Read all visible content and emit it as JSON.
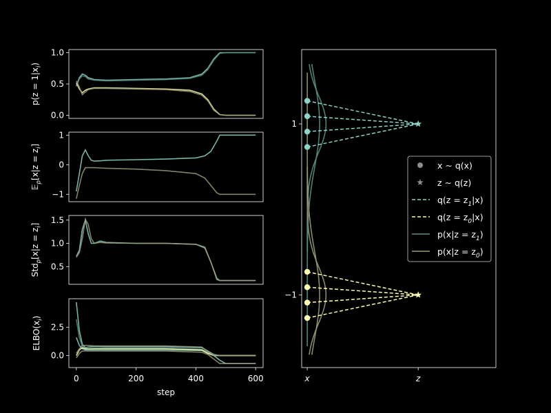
{
  "chart_data": [
    {
      "type": "line",
      "ylabel_math": [
        "p(z = 1|x",
        "i",
        ")"
      ],
      "xlim": [
        -25,
        625
      ],
      "ylim": [
        -0.05,
        1.05
      ],
      "yticks": [
        0.0,
        0.5,
        1.0
      ],
      "ytick_labels": [
        "0.0",
        "0.5",
        "1.0"
      ],
      "series": [
        {
          "group": "z1",
          "x": [
            0,
            10,
            20,
            30,
            40,
            60,
            100,
            200,
            300,
            380,
            420,
            440,
            460,
            480,
            500,
            600
          ],
          "values": [
            0.47,
            0.6,
            0.66,
            0.64,
            0.6,
            0.57,
            0.56,
            0.57,
            0.58,
            0.6,
            0.66,
            0.75,
            0.9,
            1.0,
            1.0,
            1.0
          ]
        },
        {
          "group": "z1",
          "x": [
            0,
            10,
            20,
            30,
            40,
            60,
            100,
            200,
            300,
            380,
            420,
            440,
            460,
            480,
            500,
            600
          ],
          "values": [
            0.46,
            0.58,
            0.63,
            0.62,
            0.58,
            0.56,
            0.55,
            0.56,
            0.57,
            0.59,
            0.64,
            0.73,
            0.88,
            0.99,
            1.0,
            1.0
          ]
        },
        {
          "group": "z0",
          "x": [
            0,
            10,
            20,
            30,
            40,
            60,
            100,
            200,
            300,
            380,
            420,
            440,
            460,
            480,
            500,
            600
          ],
          "values": [
            0.52,
            0.42,
            0.36,
            0.4,
            0.42,
            0.44,
            0.44,
            0.43,
            0.42,
            0.4,
            0.34,
            0.25,
            0.1,
            0.01,
            0.0,
            0.0
          ]
        },
        {
          "group": "z0",
          "x": [
            0,
            10,
            20,
            30,
            40,
            60,
            100,
            200,
            300,
            380,
            420,
            440,
            460,
            480,
            500,
            600
          ],
          "values": [
            0.55,
            0.45,
            0.33,
            0.37,
            0.41,
            0.43,
            0.43,
            0.42,
            0.41,
            0.38,
            0.32,
            0.23,
            0.08,
            0.01,
            0.0,
            0.0
          ]
        }
      ]
    },
    {
      "type": "line",
      "ylabel_math": [
        "𝔼",
        "p",
        "[x|z = z",
        "i",
        "]"
      ],
      "xlim": [
        -25,
        625
      ],
      "ylim": [
        -1.25,
        1.1
      ],
      "yticks": [
        -1,
        0,
        1
      ],
      "ytick_labels": [
        "−1",
        "0",
        "1"
      ],
      "series": [
        {
          "group": "z1",
          "x": [
            0,
            10,
            20,
            30,
            40,
            50,
            60,
            80,
            100,
            200,
            300,
            400,
            430,
            450,
            470,
            480,
            500,
            600
          ],
          "values": [
            -0.9,
            -0.3,
            0.3,
            0.5,
            0.3,
            0.15,
            0.12,
            0.13,
            0.15,
            0.17,
            0.19,
            0.23,
            0.3,
            0.45,
            0.8,
            1.0,
            1.0,
            1.0
          ]
        },
        {
          "group": "z0",
          "x": [
            0,
            10,
            20,
            30,
            40,
            50,
            60,
            80,
            100,
            200,
            300,
            400,
            430,
            450,
            470,
            480,
            500,
            600
          ],
          "values": [
            -1.15,
            -0.7,
            -0.3,
            -0.1,
            -0.1,
            -0.1,
            -0.1,
            -0.11,
            -0.12,
            -0.15,
            -0.2,
            -0.3,
            -0.45,
            -0.7,
            -0.95,
            -1.0,
            -1.0,
            -1.0
          ]
        }
      ]
    },
    {
      "type": "line",
      "ylabel_math": [
        "Std",
        "p",
        "[x|z = z",
        "i",
        "]"
      ],
      "xlim": [
        -25,
        625
      ],
      "ylim": [
        0.12,
        1.6
      ],
      "yticks": [
        0.5,
        1.0,
        1.5
      ],
      "ytick_labels": [
        "0.5",
        "1.0",
        "1.5"
      ],
      "series": [
        {
          "group": "z1",
          "x": [
            0,
            10,
            20,
            30,
            40,
            50,
            60,
            80,
            100,
            200,
            300,
            400,
            430,
            450,
            470,
            480,
            500,
            600
          ],
          "values": [
            0.72,
            0.85,
            1.3,
            1.5,
            1.2,
            1.0,
            1.0,
            1.05,
            1.02,
            1.0,
            1.0,
            0.98,
            0.9,
            0.6,
            0.25,
            0.2,
            0.2,
            0.2
          ]
        },
        {
          "group": "z0",
          "x": [
            0,
            10,
            20,
            30,
            40,
            50,
            60,
            80,
            100,
            200,
            300,
            400,
            430,
            450,
            470,
            480,
            500,
            600
          ],
          "values": [
            0.7,
            0.8,
            1.1,
            1.52,
            1.4,
            1.1,
            1.0,
            1.02,
            1.01,
            1.0,
            1.0,
            0.98,
            0.92,
            0.6,
            0.22,
            0.2,
            0.2,
            0.2
          ]
        }
      ]
    },
    {
      "type": "line",
      "ylabel_math": [
        "ELBO(x",
        "i",
        ")"
      ],
      "xlabel": "step",
      "xlim": [
        -25,
        625
      ],
      "ylim": [
        -1.05,
        5.0
      ],
      "yticks": [
        0.0,
        2.5
      ],
      "ytick_labels": [
        "0.0",
        "2.5"
      ],
      "xticks": [
        0,
        200,
        400,
        600
      ],
      "xtick_labels": [
        "0",
        "200",
        "400",
        "600"
      ],
      "series": [
        {
          "group": "z1",
          "x": [
            0,
            10,
            20,
            30,
            40,
            60,
            100,
            200,
            300,
            420,
            440,
            460,
            480,
            500,
            600
          ],
          "values": [
            4.7,
            2.2,
            1.0,
            0.7,
            0.75,
            0.8,
            0.78,
            0.78,
            0.78,
            0.7,
            0.4,
            0.1,
            0.0,
            0.0,
            0.0
          ]
        },
        {
          "group": "z1",
          "x": [
            0,
            10,
            20,
            30,
            40,
            60,
            100,
            200,
            300,
            420,
            440,
            460,
            480,
            500,
            600
          ],
          "values": [
            3.2,
            1.6,
            0.8,
            0.6,
            0.6,
            0.65,
            0.65,
            0.65,
            0.65,
            0.55,
            0.3,
            0.05,
            0.0,
            0.0,
            0.0
          ]
        },
        {
          "group": "z1",
          "x": [
            0,
            10,
            20,
            30,
            40,
            60,
            100,
            200,
            300,
            420,
            440,
            460,
            480,
            500,
            600
          ],
          "values": [
            1.6,
            0.9,
            0.6,
            0.5,
            0.5,
            0.5,
            0.5,
            0.5,
            0.5,
            0.45,
            0.2,
            0.0,
            -0.4,
            -0.7,
            -0.7
          ]
        },
        {
          "group": "z0",
          "x": [
            0,
            10,
            20,
            30,
            40,
            60,
            100,
            200,
            300,
            420,
            440,
            460,
            480,
            500,
            600
          ],
          "values": [
            -0.2,
            0.2,
            0.4,
            0.4,
            0.4,
            0.4,
            0.4,
            0.4,
            0.4,
            0.3,
            0.1,
            -0.3,
            -0.7,
            -0.7,
            -0.7
          ]
        },
        {
          "group": "z0",
          "x": [
            0,
            10,
            20,
            30,
            40,
            60,
            100,
            200,
            300,
            420,
            440,
            460,
            480,
            500,
            600
          ],
          "values": [
            0.0,
            0.5,
            0.7,
            0.6,
            0.6,
            0.6,
            0.6,
            0.6,
            0.6,
            0.5,
            0.2,
            0.0,
            0.0,
            0.0,
            0.0
          ]
        },
        {
          "group": "z0",
          "x": [
            0,
            10,
            20,
            30,
            40,
            60,
            100,
            200,
            300,
            420,
            440,
            460,
            480,
            500,
            600
          ],
          "values": [
            0.2,
            0.6,
            0.9,
            0.9,
            0.9,
            0.85,
            0.85,
            0.85,
            0.85,
            0.75,
            0.35,
            0.0,
            0.0,
            0.0,
            0.0
          ]
        }
      ]
    },
    {
      "type": "line",
      "panel": "right",
      "xlim": [
        -0.05,
        1.7
      ],
      "ylim": [
        -1.85,
        1.87
      ],
      "yticks": [
        1,
        -1
      ],
      "ytick_labels": [
        "1",
        "−1"
      ],
      "xticks": [
        0,
        1
      ],
      "xtick_labels": [
        "x",
        "z"
      ],
      "z_points": [
        {
          "z": 1,
          "x_samples": [
            1.27,
            1.09,
            0.91,
            0.73
          ]
        },
        {
          "z": -1,
          "x_samples": [
            -0.73,
            -0.91,
            -1.09,
            -1.27
          ]
        }
      ],
      "densities": [
        {
          "group": "z1",
          "mean": 1.0,
          "std": 0.33,
          "ymin": -0.5,
          "ymax": 1.7
        },
        {
          "group": "z0",
          "mean": -1.0,
          "std": 0.33,
          "ymin": -1.7,
          "ymax": 0.5
        },
        {
          "group": "z1",
          "mean": 1.0,
          "std": 0.5,
          "ymin": -1.6,
          "ymax": 1.7
        },
        {
          "group": "z0",
          "mean": -1.0,
          "std": 0.5,
          "ymin": -1.7,
          "ymax": 1.6
        }
      ],
      "legend_position": "center-right",
      "legend": [
        {
          "kind": "marker-circle",
          "color": "#8c8c8c",
          "label_math": [
            "x ∼ q(x)"
          ]
        },
        {
          "kind": "marker-star",
          "color": "#8c8c8c",
          "label_math": [
            "z ∼ q(z)"
          ]
        },
        {
          "kind": "dashed",
          "color": "#8dd3c7",
          "label_math": [
            "q(z = z",
            "1",
            "|x)"
          ]
        },
        {
          "kind": "dashed",
          "color": "#ffffb3",
          "label_math": [
            "q(z = z",
            "0",
            "|x)"
          ]
        },
        {
          "kind": "solid",
          "color": "#5a8f84",
          "label_math": [
            "p(x|z = z",
            "1",
            ")"
          ]
        },
        {
          "kind": "solid",
          "color": "#9a9a7a",
          "label_math": [
            "p(x|z = z",
            "0",
            ")"
          ]
        }
      ]
    }
  ],
  "colors": {
    "z1": "#8dd3c7",
    "z0": "#ffffb3",
    "z1_muted": "#5a8f84",
    "z0_muted": "#9a9a7a",
    "background": "#000000",
    "axis": "#ffffff"
  }
}
